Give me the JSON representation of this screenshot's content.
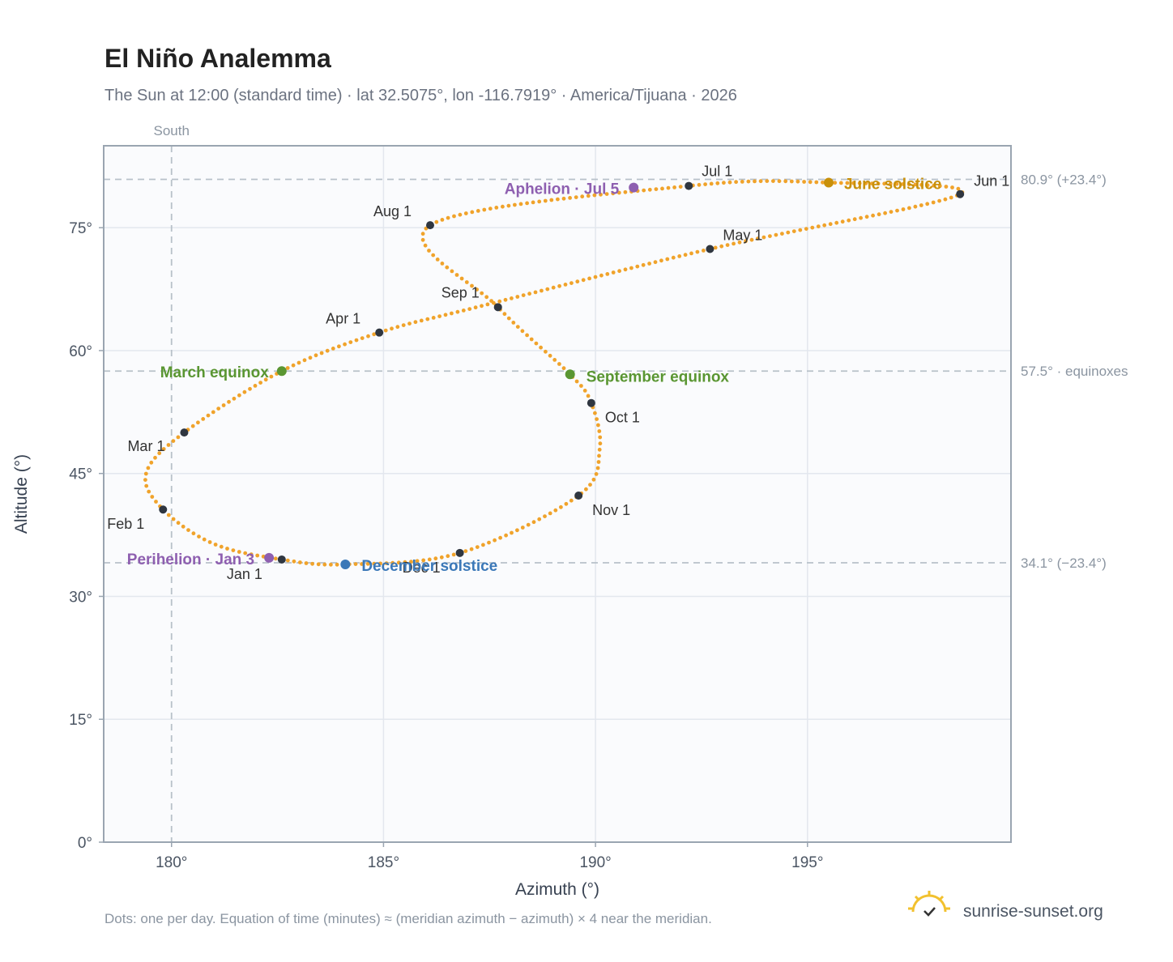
{
  "header": {
    "title": "El Niño Analemma",
    "subtitle": "The Sun at 12:00 (standard time) · lat 32.5075°, lon -116.7919° · America/Tijuana · 2026"
  },
  "footer": {
    "note": "Dots: one per day. Equation of time (minutes) ≈ (meridian azimuth − azimuth) × 4 near the meridian.",
    "brand": "sunrise-sunset.org"
  },
  "chart_data": {
    "type": "scatter",
    "xlabel": "Azimuth (°)",
    "ylabel": "Altitude (°)",
    "xlim": [
      178.4,
      199.8
    ],
    "ylim": [
      0,
      85
    ],
    "x_ticks": [
      180,
      185,
      190,
      195
    ],
    "x_tick_labels": [
      "180°",
      "185°",
      "190°",
      "195°"
    ],
    "y_ticks": [
      0,
      15,
      30,
      45,
      60,
      75
    ],
    "y_tick_labels": [
      "0°",
      "15°",
      "30°",
      "45°",
      "60°",
      "75°"
    ],
    "grid": true,
    "reference_lines": {
      "vertical": [
        {
          "x": 180,
          "label": "South"
        }
      ],
      "horizontal": [
        {
          "y": 80.9,
          "label": "80.9° (+23.4°)"
        },
        {
          "y": 57.5,
          "label": "57.5° · equinoxes"
        },
        {
          "y": 34.1,
          "label": "34.1° (−23.4°)"
        }
      ]
    },
    "series_color": "#f0a32b",
    "month_markers": [
      {
        "label": "Jan 1",
        "az": 182.6,
        "alt": 34.5
      },
      {
        "label": "Feb 1",
        "az": 179.8,
        "alt": 40.6
      },
      {
        "label": "Mar 1",
        "az": 180.3,
        "alt": 50.0
      },
      {
        "label": "Apr 1",
        "az": 184.9,
        "alt": 62.2
      },
      {
        "label": "May 1",
        "az": 192.7,
        "alt": 72.4
      },
      {
        "label": "Jun 1",
        "az": 198.6,
        "alt": 79.1
      },
      {
        "label": "Jul 1",
        "az": 192.2,
        "alt": 80.1
      },
      {
        "label": "Aug 1",
        "az": 186.1,
        "alt": 75.3
      },
      {
        "label": "Sep 1",
        "az": 187.7,
        "alt": 65.3
      },
      {
        "label": "Oct 1",
        "az": 189.9,
        "alt": 53.6
      },
      {
        "label": "Nov 1",
        "az": 189.6,
        "alt": 42.3
      },
      {
        "label": "Dec 1",
        "az": 186.8,
        "alt": 35.3
      }
    ],
    "events": [
      {
        "label": "March equinox",
        "az": 182.6,
        "alt": 57.5,
        "color": "#5a9632"
      },
      {
        "label": "June solstice",
        "az": 195.5,
        "alt": 80.5,
        "color": "#c8900a"
      },
      {
        "label": "September equinox",
        "az": 189.4,
        "alt": 57.1,
        "color": "#5a9632"
      },
      {
        "label": "December solstice",
        "az": 184.1,
        "alt": 33.9,
        "color": "#3b78b8"
      },
      {
        "label": "Aphelion · Jul 5",
        "az": 190.9,
        "alt": 79.9,
        "color": "#8e5fb0"
      },
      {
        "label": "Perihelion · Jan 3",
        "az": 182.3,
        "alt": 34.7,
        "color": "#8e5fb0"
      }
    ],
    "curve_control_points": [
      [
        182.6,
        34.5
      ],
      [
        181.0,
        36.4
      ],
      [
        179.8,
        40.6
      ],
      [
        179.4,
        45.0
      ],
      [
        180.3,
        50.0
      ],
      [
        182.6,
        57.5
      ],
      [
        184.9,
        62.2
      ],
      [
        187.2,
        65.3
      ],
      [
        192.7,
        72.4
      ],
      [
        198.6,
        79.1
      ],
      [
        195.5,
        80.5
      ],
      [
        192.2,
        80.1
      ],
      [
        186.1,
        75.3
      ],
      [
        187.7,
        65.3
      ],
      [
        189.4,
        57.1
      ],
      [
        189.9,
        53.6
      ],
      [
        190.1,
        48.0
      ],
      [
        189.6,
        42.3
      ],
      [
        186.8,
        35.3
      ],
      [
        184.1,
        33.9
      ],
      [
        182.6,
        34.5
      ]
    ]
  }
}
